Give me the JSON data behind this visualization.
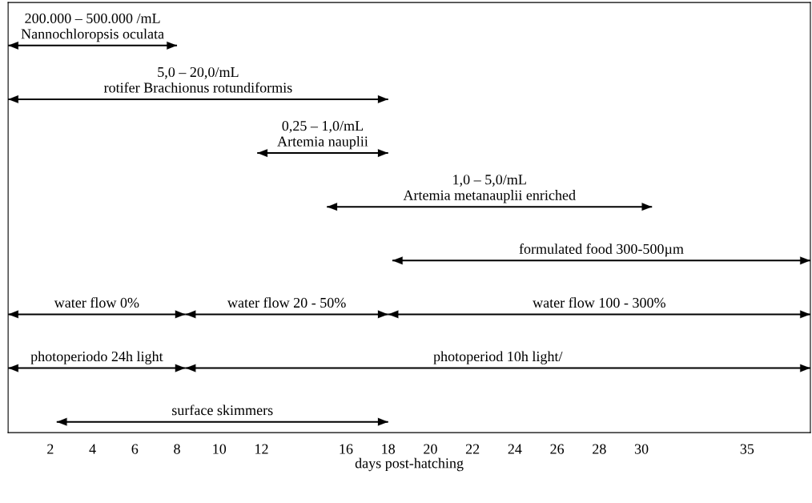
{
  "chart_data": {
    "type": "bar",
    "orientation": "horizontal",
    "categories": [
      null,
      null,
      null,
      null,
      null,
      null,
      null,
      null
    ],
    "series": [
      {
        "name": "200.000 – 500.000 /mL\nNannochloropsis oculata",
        "color": "#000000",
        "base": [
          0,
          null,
          null,
          null,
          null,
          null,
          null,
          null
        ],
        "values": [
          8,
          null,
          null,
          null,
          null,
          null,
          null,
          null
        ]
      },
      {
        "name": "5,0 – 20,0/mL\nrotifer Brachionus rotundiformis",
        "color": "#000000",
        "base": [
          null,
          0,
          null,
          null,
          null,
          null,
          null,
          null
        ],
        "values": [
          null,
          18,
          null,
          null,
          null,
          null,
          null,
          null
        ]
      },
      {
        "name": "0,25 – 1,0/mL\nArtemia nauplii",
        "color": "#000000",
        "base": [
          null,
          null,
          11.8,
          null,
          null,
          null,
          null,
          null
        ],
        "values": [
          null,
          null,
          6.2,
          null,
          null,
          null,
          null,
          null
        ]
      },
      {
        "name": "1,0 – 5,0/mL\nArtemia metanauplii enriched",
        "color": "#000000",
        "base": [
          null,
          null,
          null,
          15.1,
          null,
          null,
          null,
          null
        ],
        "values": [
          null,
          null,
          null,
          15.4,
          null,
          null,
          null,
          null
        ]
      },
      {
        "name": "formulated food 300-500µm",
        "color": "#000000",
        "base": [
          null,
          null,
          null,
          null,
          18.2,
          null,
          null,
          null
        ],
        "values": [
          null,
          null,
          null,
          null,
          19.8,
          null,
          null,
          null
        ]
      },
      {
        "name": "water flow 0%",
        "color": "#000000",
        "base": [
          null,
          null,
          null,
          null,
          null,
          0,
          null,
          null
        ],
        "values": [
          null,
          null,
          null,
          null,
          null,
          8.4,
          null,
          null
        ]
      },
      {
        "name": "water flow 20 - 50%",
        "color": "#000000",
        "base": [
          null,
          null,
          null,
          null,
          null,
          8.4,
          null,
          null
        ],
        "values": [
          null,
          null,
          null,
          null,
          null,
          9.6,
          null,
          null
        ]
      },
      {
        "name": "water flow 100 - 300%",
        "color": "#000000",
        "base": [
          null,
          null,
          null,
          null,
          null,
          18,
          null,
          null
        ],
        "values": [
          null,
          null,
          null,
          null,
          null,
          20,
          null,
          null
        ]
      },
      {
        "name": "photoperiodo 24h light",
        "color": "#000000",
        "base": [
          null,
          null,
          null,
          null,
          null,
          null,
          0,
          null
        ],
        "values": [
          null,
          null,
          null,
          null,
          null,
          null,
          8.4,
          null
        ]
      },
      {
        "name": "photoperiod 10h light/",
        "color": "#000000",
        "base": [
          null,
          null,
          null,
          null,
          null,
          null,
          8.4,
          null
        ],
        "values": [
          null,
          null,
          null,
          null,
          null,
          null,
          29.6,
          null
        ]
      },
      {
        "name": "surface skimmers",
        "color": "#000000",
        "base": [
          null,
          null,
          null,
          null,
          null,
          null,
          null,
          2.3
        ],
        "values": [
          null,
          null,
          null,
          null,
          null,
          null,
          null,
          15.7
        ]
      }
    ],
    "xlabel": "days post-hatching",
    "xlim": [
      0,
      38
    ],
    "xticks": [
      2,
      4,
      6,
      8,
      10,
      12,
      16,
      18,
      20,
      22,
      24,
      26,
      28,
      30,
      35
    ],
    "tick_labels": "x",
    "grid": false,
    "legend": false
  }
}
